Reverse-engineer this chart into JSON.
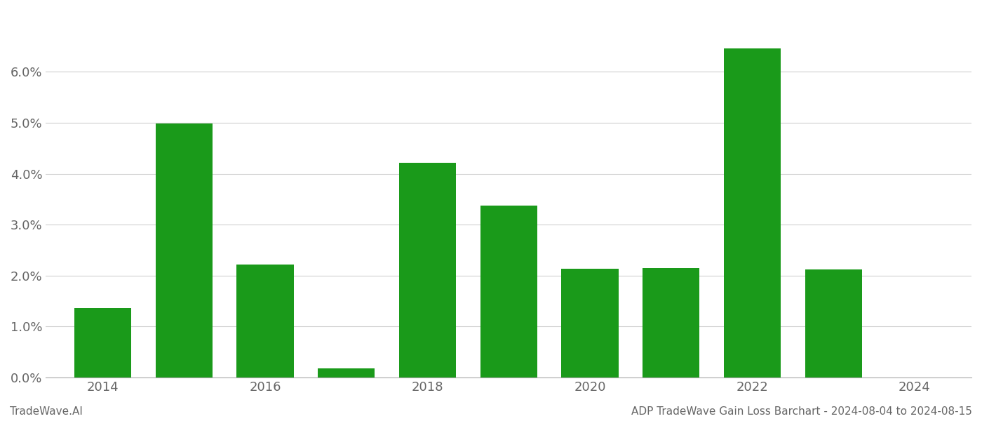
{
  "years": [
    2014,
    2015,
    2016,
    2017,
    2018,
    2019,
    2020,
    2021,
    2022,
    2023
  ],
  "values": [
    0.0136,
    0.0498,
    0.0222,
    0.0018,
    0.0422,
    0.0338,
    0.0214,
    0.0215,
    0.0645,
    0.0212
  ],
  "bar_color": "#1a9a1a",
  "footer_left": "TradeWave.AI",
  "footer_right": "ADP TradeWave Gain Loss Barchart - 2024-08-04 to 2024-08-15",
  "ylim": [
    0,
    0.072
  ],
  "yticks": [
    0.0,
    0.01,
    0.02,
    0.03,
    0.04,
    0.05,
    0.06
  ],
  "xtick_positions": [
    2014,
    2016,
    2018,
    2020,
    2022,
    2024
  ],
  "xtick_labels": [
    "2014",
    "2016",
    "2018",
    "2020",
    "2022",
    "2024"
  ],
  "xlim": [
    2013.3,
    2024.7
  ],
  "background_color": "#ffffff",
  "grid_color": "#d0d0d0"
}
